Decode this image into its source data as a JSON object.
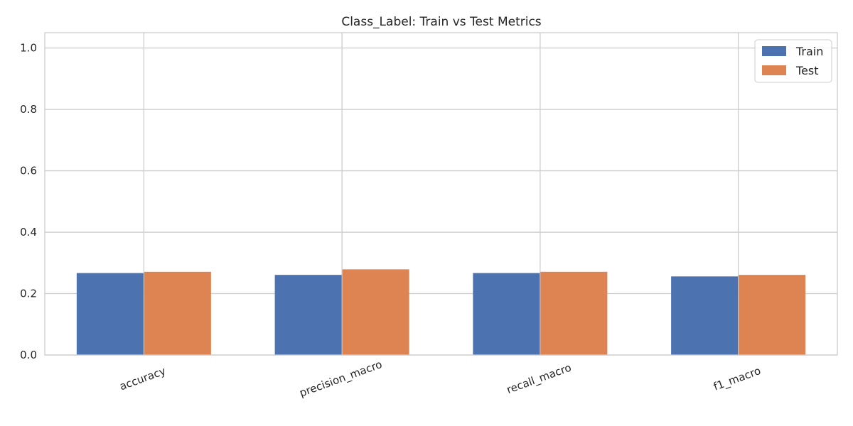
{
  "chart_data": {
    "type": "bar",
    "title": "Class_Label: Train vs Test Metrics",
    "xlabel": "",
    "ylabel": "",
    "categories": [
      "accuracy",
      "precision_macro",
      "recall_macro",
      "f1_macro"
    ],
    "series": [
      {
        "name": "Train",
        "color": "#4c72b0",
        "values": [
          0.267,
          0.261,
          0.267,
          0.256
        ]
      },
      {
        "name": "Test",
        "color": "#dd8452",
        "values": [
          0.271,
          0.279,
          0.271,
          0.261
        ]
      }
    ],
    "ylim": [
      0,
      1.05
    ],
    "yticks": [
      "0.0",
      "0.2",
      "0.4",
      "0.6",
      "0.8",
      "1.0"
    ],
    "grid": true,
    "legend_position": "top-right"
  }
}
